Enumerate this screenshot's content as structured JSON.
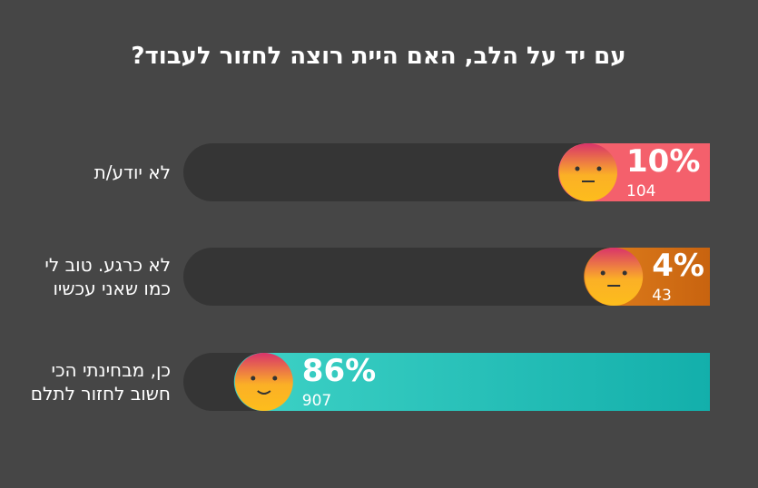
{
  "chart_data": {
    "type": "bar",
    "title": "עם יד על הלב, האם היית רוצה לחזור לעבוד?",
    "categories": [
      "לא יודע/ת",
      "לא כרגע. טוב לי\nכמו שאני עכשיו",
      "כן, מבחינתי הכי\nחשוב לחזור לתלם"
    ],
    "values": [
      10,
      4,
      86
    ],
    "value_labels": [
      "10%",
      "4%",
      "86%"
    ],
    "counts": [
      104,
      43,
      907
    ],
    "colors": [
      [
        "#f4606c",
        "#f4606c"
      ],
      [
        "#e0801e",
        "#c8630f"
      ],
      [
        "#3ed2c6",
        "#13afab"
      ]
    ]
  }
}
